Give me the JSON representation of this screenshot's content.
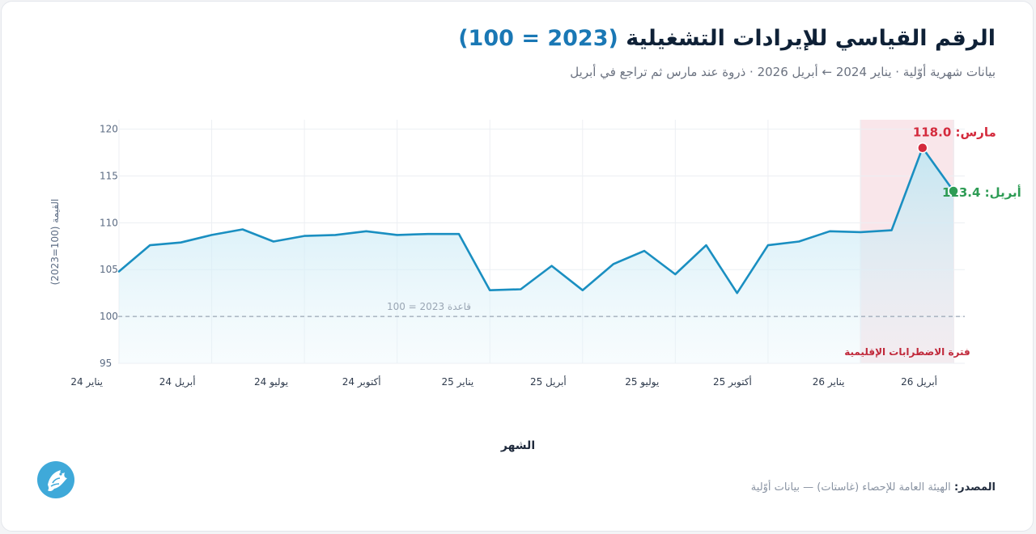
{
  "header": {
    "title_main": "الرقم القياسي للإيرادات التشغيلية",
    "title_accent": "(2023 = 100)",
    "subtitle": "بيانات شهرية أوّلية · يناير 2024 ← أبريل 2026 · ذروة عند مارس ثم تراجع في أبريل"
  },
  "footer": {
    "source_label": "المصدر:",
    "source_text": "الهيئة العامة للإحصاء (غاستات) — بيانات أوّلية",
    "logo_icon": "bird-logo-icon"
  },
  "colors": {
    "line": "#1a8fc1",
    "area_top": "#bfe6f3",
    "peak": "#d42a3c",
    "latest": "#2e9c55",
    "band": "#f9e6ea",
    "band_label": "#c0283a",
    "baseline": "#9aa6b4",
    "grid": "#eceff3",
    "axis_text": "#5b6b83"
  },
  "chart_data": {
    "type": "area",
    "xlabel": "الشهر",
    "ylabel": "القيمة (100=2023)",
    "ylim": [
      95,
      121
    ],
    "yticks": [
      95,
      100,
      105,
      110,
      115,
      120
    ],
    "x_tick_labels": [
      "يناير 24",
      "أبريل 24",
      "يوليو 24",
      "أكتوبر 24",
      "يناير 25",
      "أبريل 25",
      "يوليو 25",
      "أكتوبر 25",
      "يناير 26",
      "أبريل 26"
    ],
    "x_tick_index": [
      0,
      3,
      6,
      9,
      12,
      15,
      18,
      21,
      24,
      27
    ],
    "x": [
      "2024-01",
      "2024-02",
      "2024-03",
      "2024-04",
      "2024-05",
      "2024-06",
      "2024-07",
      "2024-08",
      "2024-09",
      "2024-10",
      "2024-11",
      "2024-12",
      "2025-01",
      "2025-02",
      "2025-03",
      "2025-04",
      "2025-05",
      "2025-06",
      "2025-07",
      "2025-08",
      "2025-09",
      "2025-10",
      "2025-11",
      "2025-12",
      "2026-01",
      "2026-02",
      "2026-03",
      "2026-04"
    ],
    "values": [
      104.8,
      107.6,
      107.9,
      108.7,
      109.3,
      108.0,
      108.6,
      108.7,
      109.1,
      108.7,
      108.8,
      108.8,
      102.8,
      102.9,
      105.4,
      102.8,
      105.6,
      107.0,
      104.5,
      107.6,
      102.5,
      107.6,
      108.0,
      109.1,
      109.0,
      109.2,
      118.0,
      113.4
    ],
    "baseline": {
      "value": 100,
      "label": "قاعدة 2023 = 100"
    },
    "shaded_period": {
      "from_index": 24,
      "to_index": 27,
      "label": "فترة الاضطرابات الإقليمية"
    },
    "annotations": [
      {
        "index": 26,
        "label": "مارس: 118.0",
        "kind": "peak"
      },
      {
        "index": 27,
        "label": "أبريل: 113.4",
        "kind": "latest"
      }
    ],
    "grid": true
  }
}
